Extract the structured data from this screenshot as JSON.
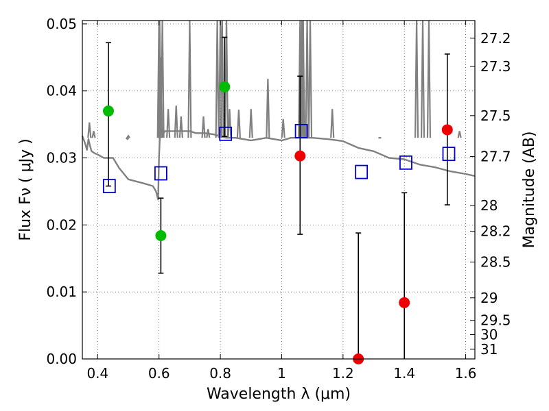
{
  "chart_data": {
    "type": "scatter",
    "title": "",
    "xlabel": "Wavelength  λ (μm)",
    "ylabel": "Flux  Fν  ( μJy )",
    "y2label": "Magnitude (AB)",
    "xlim": [
      0.35,
      1.63
    ],
    "ylim": [
      0.0,
      0.0505
    ],
    "grid": true,
    "x_ticks": [
      0.4,
      0.6,
      0.8,
      1.0,
      1.2,
      1.4,
      1.6
    ],
    "x_tick_labels": [
      "0.4",
      "0.6",
      "0.8",
      "1",
      "1.2",
      "1.4",
      "1.6"
    ],
    "y_ticks": [
      0.0,
      0.01,
      0.02,
      0.03,
      0.04,
      0.05
    ],
    "y_tick_labels": [
      "0.00",
      "0.01",
      "0.02",
      "0.03",
      "0.04",
      "0.05"
    ],
    "mag_ticks": [
      27.2,
      27.3,
      27.5,
      27.7,
      28,
      28.2,
      28.5,
      29,
      29.5,
      30,
      31
    ],
    "mag_tick_labels": [
      "27.2",
      "27.3",
      "27.5",
      "27.7",
      "28",
      "28.2",
      "28.5",
      "29",
      "29.5",
      "30",
      "31"
    ],
    "colors": {
      "model": "#808080",
      "detection": "#00bb00",
      "non_detection": "#ee0000",
      "model_band": "#0000cc",
      "errorbar": "#000000",
      "grid": "#555555"
    },
    "series": [
      {
        "name": "observed-green",
        "marker": "circle",
        "x": [
          0.435,
          0.606,
          0.814
        ],
        "y": [
          0.037,
          0.0184,
          0.0406
        ],
        "yerr_low": [
          0.0258,
          0.0128,
          0.0332
        ],
        "yerr_high": [
          0.0472,
          0.024,
          0.048
        ]
      },
      {
        "name": "observed-red",
        "marker": "circle",
        "x": [
          1.06,
          1.25,
          1.4,
          1.54
        ],
        "y": [
          0.0303,
          0.0,
          0.0084,
          0.0342
        ],
        "yerr_low": [
          0.0186,
          0.0,
          0.0,
          0.023
        ],
        "yerr_high": [
          0.0422,
          0.0188,
          0.0248,
          0.0455
        ]
      },
      {
        "name": "model-band-flux",
        "marker": "open-square",
        "x": [
          0.438,
          0.606,
          0.817,
          1.064,
          1.26,
          1.405,
          1.545
        ],
        "y": [
          0.0258,
          0.0277,
          0.0336,
          0.034,
          0.0279,
          0.0293,
          0.0306
        ]
      },
      {
        "name": "model-spectrum",
        "marker": "line",
        "x": [
          0.35,
          0.36,
          0.365,
          0.37,
          0.375,
          0.38,
          0.39,
          0.4,
          0.42,
          0.45,
          0.47,
          0.5,
          0.55,
          0.58,
          0.59,
          0.597,
          0.6,
          0.604,
          0.608,
          0.612,
          0.62,
          0.64,
          0.66,
          0.68,
          0.7,
          0.72,
          0.75,
          0.78,
          0.8,
          0.82,
          0.85,
          0.9,
          0.95,
          1.0,
          1.03,
          1.05,
          1.07,
          1.1,
          1.15,
          1.2,
          1.25,
          1.3,
          1.35,
          1.4,
          1.45,
          1.5,
          1.55,
          1.6,
          1.63
        ],
        "y": [
          0.0333,
          0.032,
          0.0312,
          0.0328,
          0.0318,
          0.031,
          0.0307,
          0.0305,
          0.03,
          0.03,
          0.0285,
          0.0268,
          0.0262,
          0.0258,
          0.025,
          0.0238,
          0.03,
          0.0345,
          0.035,
          0.0335,
          0.034,
          0.034,
          0.034,
          0.034,
          0.034,
          0.0337,
          0.0337,
          0.0335,
          0.0332,
          0.033,
          0.033,
          0.0326,
          0.033,
          0.0326,
          0.033,
          0.033,
          0.033,
          0.033,
          0.0328,
          0.0325,
          0.0315,
          0.031,
          0.03,
          0.0298,
          0.029,
          0.0286,
          0.028,
          0.0276,
          0.0273
        ]
      },
      {
        "name": "model-emission-lines",
        "marker": "spike",
        "x": [
          0.373,
          0.387,
          0.497,
          0.5,
          0.6,
          0.602,
          0.606,
          0.611,
          0.63,
          0.656,
          0.672,
          0.7,
          0.745,
          0.76,
          0.79,
          0.8,
          0.806,
          0.82,
          0.83,
          0.86,
          0.9,
          0.955,
          1.005,
          1.06,
          1.066,
          1.07,
          1.083,
          1.093,
          1.165,
          1.32,
          1.44,
          1.46,
          1.48,
          1.58
        ],
        "y": [
          0.0353,
          0.034,
          0.0328,
          0.0333,
          0.0505,
          0.0505,
          0.045,
          0.0505,
          0.0373,
          0.0378,
          0.0362,
          0.0505,
          0.0362,
          0.0343,
          0.0505,
          0.0505,
          0.0505,
          0.0505,
          0.0373,
          0.0372,
          0.0373,
          0.0418,
          0.0358,
          0.0505,
          0.0505,
          0.0505,
          0.0505,
          0.0505,
          0.0373,
          0.033,
          0.0505,
          0.0505,
          0.0505,
          0.034
        ]
      }
    ]
  }
}
